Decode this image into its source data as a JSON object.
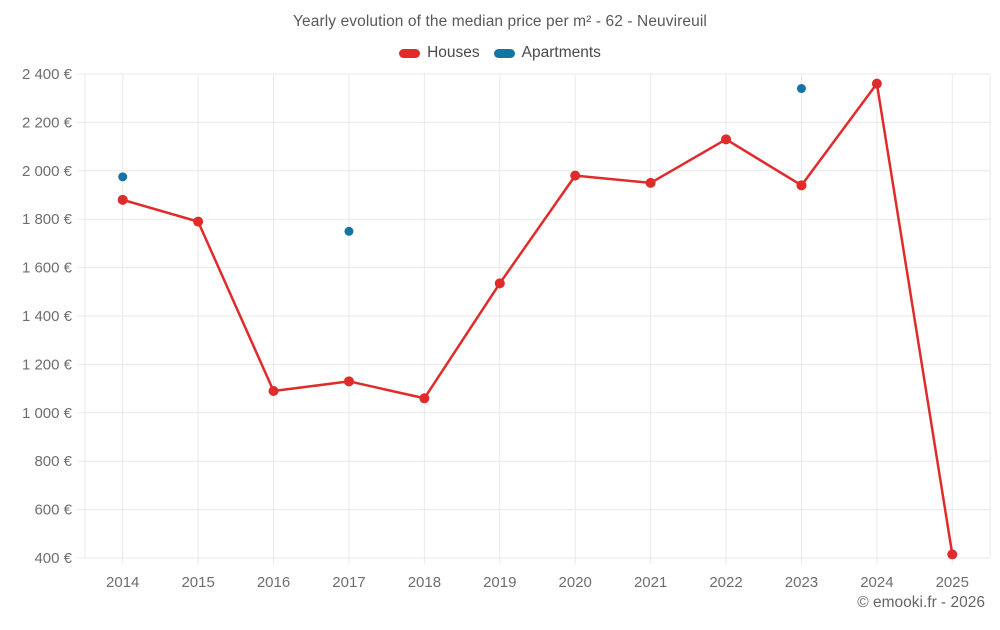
{
  "header": {
    "title": "Yearly evolution of the median price per m² - 62 - Neuvireuil"
  },
  "legend": {
    "items": [
      {
        "label": "Houses",
        "color": "#e02b2b"
      },
      {
        "label": "Apartments",
        "color": "#1474a4"
      }
    ]
  },
  "footer": {
    "credit": "© emooki.fr - 2026"
  },
  "colors": {
    "houses": "#e02b2b",
    "apartments": "#1474a4",
    "grid": "#e9e9e9",
    "tick_text": "#6e6e6e",
    "title_text": "#595959"
  },
  "chart_data": {
    "type": "line",
    "title": "Yearly evolution of the median price per m² - 62 - Neuvireuil",
    "x": [
      2014,
      2015,
      2016,
      2017,
      2018,
      2019,
      2020,
      2021,
      2022,
      2023,
      2024,
      2025
    ],
    "series": [
      {
        "name": "Houses",
        "color": "#e02b2b",
        "style": "line+markers",
        "values": [
          1880,
          1790,
          1090,
          1130,
          1060,
          1535,
          1980,
          1950,
          2130,
          1940,
          2360,
          415
        ]
      },
      {
        "name": "Apartments",
        "color": "#1474a4",
        "style": "markers",
        "values": [
          1975,
          null,
          null,
          1750,
          null,
          null,
          null,
          null,
          null,
          2340,
          null,
          null
        ]
      }
    ],
    "ylabel": "",
    "xlabel": "",
    "ylim": [
      400,
      2400
    ],
    "yticks": [
      400,
      600,
      800,
      1000,
      1200,
      1400,
      1600,
      1800,
      2000,
      2200,
      2400
    ],
    "ytick_suffix": " €",
    "grid": true,
    "legend_position": "top"
  }
}
